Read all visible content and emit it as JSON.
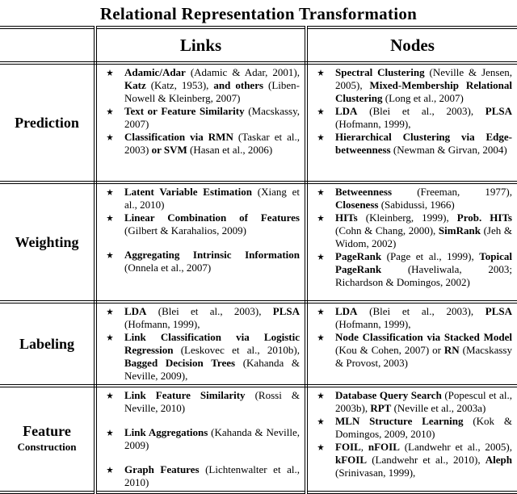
{
  "title": "Relational Representation Transformation",
  "headers": [
    "Links",
    "Nodes"
  ],
  "rows": [
    {
      "label": "Prediction",
      "height": 148,
      "links": [
        [
          {
            "text": "Adamic/Adar",
            "bold": true
          },
          {
            "text": " (Adamic & Adar, 2001), "
          },
          {
            "text": "Katz",
            "bold": true
          },
          {
            "text": " (Katz, 1953), "
          },
          {
            "text": "and others",
            "bold": true
          },
          {
            "text": " (Liben-Nowell & Kleinberg, 2007)"
          }
        ],
        [
          {
            "text": "Text or Feature Similarity",
            "bold": true
          },
          {
            "text": " (Macskassy, 2007)"
          }
        ],
        [
          {
            "text": "Classification via RMN",
            "bold": true
          },
          {
            "text": " (Taskar et al., 2003) "
          },
          {
            "text": "or SVM",
            "bold": true
          },
          {
            "text": " (Hasan et al., 2006)"
          }
        ]
      ],
      "nodes": [
        [
          {
            "text": "Spectral Clustering",
            "bold": true
          },
          {
            "text": " (Neville & Jensen, 2005), "
          },
          {
            "text": "Mixed-Membership Relational Clustering",
            "bold": true
          },
          {
            "text": " (Long et al., 2007)"
          }
        ],
        [
          {
            "text": "LDA",
            "bold": true
          },
          {
            "text": " (Blei et al., 2003), "
          },
          {
            "text": "PLSA",
            "bold": true
          },
          {
            "text": " (Hofmann, 1999),"
          }
        ],
        [
          {
            "text": "Hierarchical Clustering via Edge-betweenness",
            "bold": true
          },
          {
            "text": " (Newman & Girvan, 2004)"
          }
        ]
      ]
    },
    {
      "label": "Weighting",
      "height": 148,
      "links": [
        [
          {
            "text": "Latent Variable Estimation",
            "bold": true
          },
          {
            "text": " (Xiang et al., 2010)"
          }
        ],
        [
          {
            "text": "Linear Combination of Features",
            "bold": true
          },
          {
            "text": " (Gilbert & Karahalios, 2009)"
          }
        ],
        [
          {
            "text": "Aggregating Intrinsic Information",
            "bold": true
          },
          {
            "text": " (Onnela et al., 2007)"
          }
        ]
      ],
      "nodes": [
        [
          {
            "text": "Betweenness",
            "bold": true
          },
          {
            "text": " (Freeman, 1977), "
          },
          {
            "text": "Closeness",
            "bold": true
          },
          {
            "text": " (Sabidussi, 1966)"
          }
        ],
        [
          {
            "text": "HITs",
            "bold": true
          },
          {
            "text": " (Kleinberg, 1999), "
          },
          {
            "text": "Prob. HITs",
            "bold": true
          },
          {
            "text": " (Cohn & Chang, 2000), "
          },
          {
            "text": "SimRank",
            "bold": true
          },
          {
            "text": " (Jeh & Widom, 2002)"
          }
        ],
        [
          {
            "text": "PageRank",
            "bold": true
          },
          {
            "text": " (Page et al., 1999), "
          },
          {
            "text": "Topical PageRank",
            "bold": true
          },
          {
            "text": " (Haveliwala, 2003; Richardson & Domingos, 2002)"
          }
        ]
      ]
    },
    {
      "label": "Labeling",
      "height": 100,
      "links": [
        [
          {
            "text": "LDA",
            "bold": true
          },
          {
            "text": " (Blei et al., 2003), "
          },
          {
            "text": "PLSA",
            "bold": true
          },
          {
            "text": " (Hofmann, 1999),"
          }
        ],
        [
          {
            "text": "Link Classification via Logistic Regression",
            "bold": true
          },
          {
            "text": " (Leskovec et al., 2010b), "
          },
          {
            "text": "Bagged Decision Trees",
            "bold": true
          },
          {
            "text": " (Kahanda & Neville, 2009),"
          }
        ]
      ],
      "nodes": [
        [
          {
            "text": "LDA",
            "bold": true
          },
          {
            "text": " (Blei et al., 2003), "
          },
          {
            "text": "PLSA",
            "bold": true
          },
          {
            "text": " (Hofmann, 1999),"
          }
        ],
        [
          {
            "text": "Node Classification via Stacked Model",
            "bold": true
          },
          {
            "text": " (Kou & Cohen, 2007) or "
          },
          {
            "text": "RN",
            "bold": true
          },
          {
            "text": " (Macskassy & Provost, 2003)"
          }
        ]
      ]
    },
    {
      "label": "Feature",
      "sublabel": "Construction",
      "height": 128,
      "links": [
        [
          {
            "text": "Link Feature Similarity",
            "bold": true
          },
          {
            "text": " (Rossi & Neville, 2010)"
          }
        ],
        [
          {
            "text": "Link Aggregations",
            "bold": true
          },
          {
            "text": " (Kahanda & Neville, 2009)"
          }
        ],
        [
          {
            "text": "Graph Features",
            "bold": true
          },
          {
            "text": " (Lichtenwalter et al., 2010)"
          }
        ]
      ],
      "nodes": [
        [
          {
            "text": "Database Query Search",
            "bold": true
          },
          {
            "text": " (Popescul et al., 2003b), "
          },
          {
            "text": "RPT",
            "bold": true
          },
          {
            "text": " (Neville et al., 2003a)"
          }
        ],
        [
          {
            "text": "MLN Structure Learning",
            "bold": true
          },
          {
            "text": " (Kok & Domingos, 2009, 2010)"
          }
        ],
        [
          {
            "text": "FOIL",
            "bold": true
          },
          {
            "text": ", "
          },
          {
            "text": "nFOIL",
            "bold": true
          },
          {
            "text": " (Landwehr et al., 2005), "
          },
          {
            "text": "kFOIL",
            "bold": true
          },
          {
            "text": " (Landwehr et al., 2010), "
          },
          {
            "text": "Aleph",
            "bold": true
          },
          {
            "text": " (Srinivasan, 1999),"
          }
        ]
      ]
    }
  ]
}
